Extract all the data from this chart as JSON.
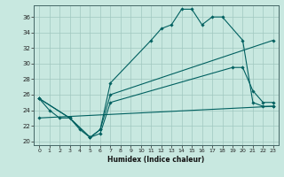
{
  "title": "",
  "xlabel": "Humidex (Indice chaleur)",
  "background_color": "#c8e8e0",
  "grid_color": "#a0c8c0",
  "line_color": "#006060",
  "xlim": [
    -0.5,
    23.5
  ],
  "ylim": [
    19.5,
    37.5
  ],
  "xticks": [
    0,
    1,
    2,
    3,
    4,
    5,
    6,
    7,
    8,
    9,
    10,
    11,
    12,
    13,
    14,
    15,
    16,
    17,
    18,
    19,
    20,
    21,
    22,
    23
  ],
  "yticks": [
    20,
    22,
    24,
    26,
    28,
    30,
    32,
    34,
    36
  ],
  "lines": [
    {
      "x": [
        0,
        1,
        2,
        3,
        4,
        5,
        6,
        7,
        11,
        12,
        13,
        14,
        15,
        16,
        17,
        18,
        20,
        21,
        22,
        23
      ],
      "y": [
        25.5,
        24,
        23,
        23,
        21.5,
        20.5,
        21.5,
        27.5,
        33,
        34.5,
        35,
        37,
        37,
        35,
        36,
        36,
        33,
        25,
        24.5,
        24.5
      ]
    },
    {
      "x": [
        0,
        3,
        5,
        6,
        7,
        19,
        20,
        21,
        22,
        23
      ],
      "y": [
        25.5,
        23,
        20.5,
        21,
        25,
        29.5,
        29.5,
        26.5,
        25,
        25
      ]
    },
    {
      "x": [
        0,
        3,
        5,
        6,
        7,
        23
      ],
      "y": [
        25.5,
        23,
        20.5,
        21.5,
        26,
        33
      ]
    },
    {
      "x": [
        0,
        23
      ],
      "y": [
        23,
        24.5
      ]
    }
  ]
}
